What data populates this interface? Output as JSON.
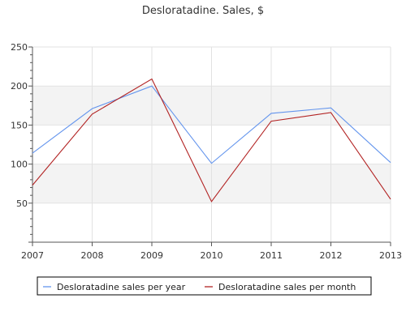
{
  "chart_data": {
    "type": "line",
    "title": "Desloratadine. Sales, $",
    "xlabel": "",
    "ylabel": "",
    "x": [
      "2007",
      "2008",
      "2009",
      "2010",
      "2011",
      "2012",
      "2013"
    ],
    "ylim": [
      0,
      250
    ],
    "yticks": [
      50,
      100,
      150,
      200,
      250
    ],
    "grid": true,
    "legend_position": "bottom",
    "series": [
      {
        "name": "Desloratadine sales per year",
        "color": "#6495ed",
        "values": [
          114,
          171,
          200,
          101,
          165,
          172,
          102
        ]
      },
      {
        "name": "Desloratadine sales per month",
        "color": "#b22222",
        "values": [
          73,
          164,
          209,
          52,
          155,
          166,
          55
        ]
      }
    ]
  }
}
